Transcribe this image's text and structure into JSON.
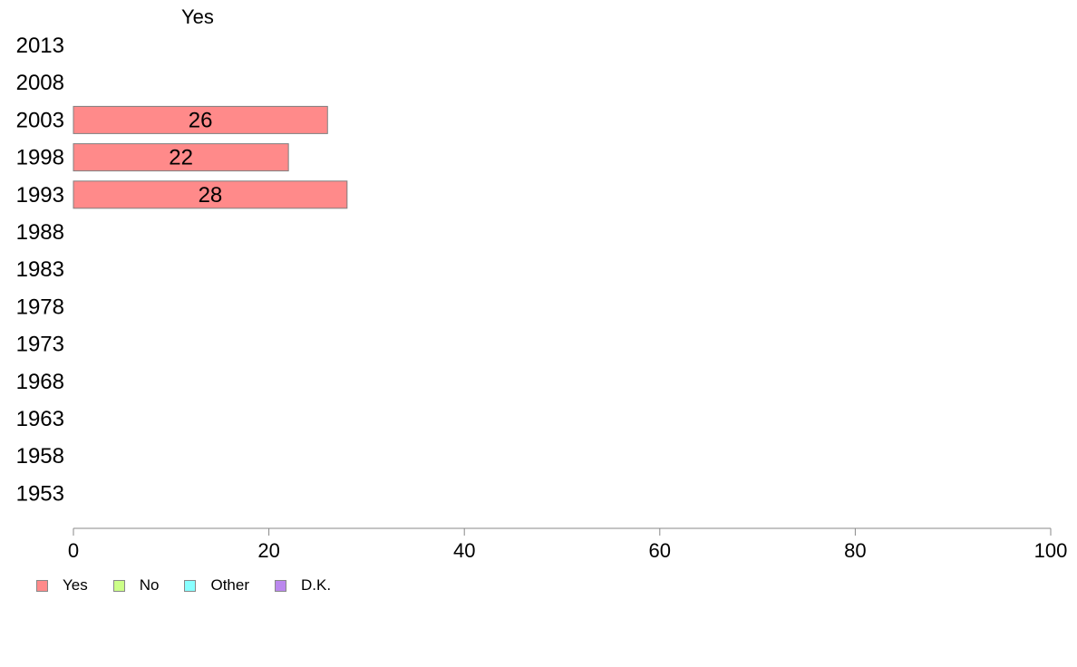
{
  "chart_data": {
    "type": "bar",
    "orientation": "horizontal",
    "series_heading": "Yes",
    "categories": [
      "2013",
      "2008",
      "2003",
      "1998",
      "1993",
      "1988",
      "1983",
      "1978",
      "1973",
      "1968",
      "1963",
      "1958",
      "1953"
    ],
    "series": [
      {
        "name": "Yes",
        "color": "#ff8a8a",
        "values": [
          null,
          null,
          26,
          22,
          28,
          null,
          null,
          null,
          null,
          null,
          null,
          null,
          null
        ]
      }
    ],
    "data_labels": [
      null,
      null,
      "26",
      "22",
      "28",
      null,
      null,
      null,
      null,
      null,
      null,
      null,
      null
    ],
    "xlim": [
      0,
      100
    ],
    "xticks": [
      "0",
      "20",
      "40",
      "60",
      "80",
      "100"
    ],
    "grid": false,
    "legend": {
      "placement": "bottom-left",
      "items": [
        {
          "label": "Yes",
          "color": "#ff8a8a"
        },
        {
          "label": "No",
          "color": "#ccff88"
        },
        {
          "label": "Other",
          "color": "#88ffff"
        },
        {
          "label": "D.K.",
          "color": "#bb88ee"
        }
      ]
    }
  }
}
